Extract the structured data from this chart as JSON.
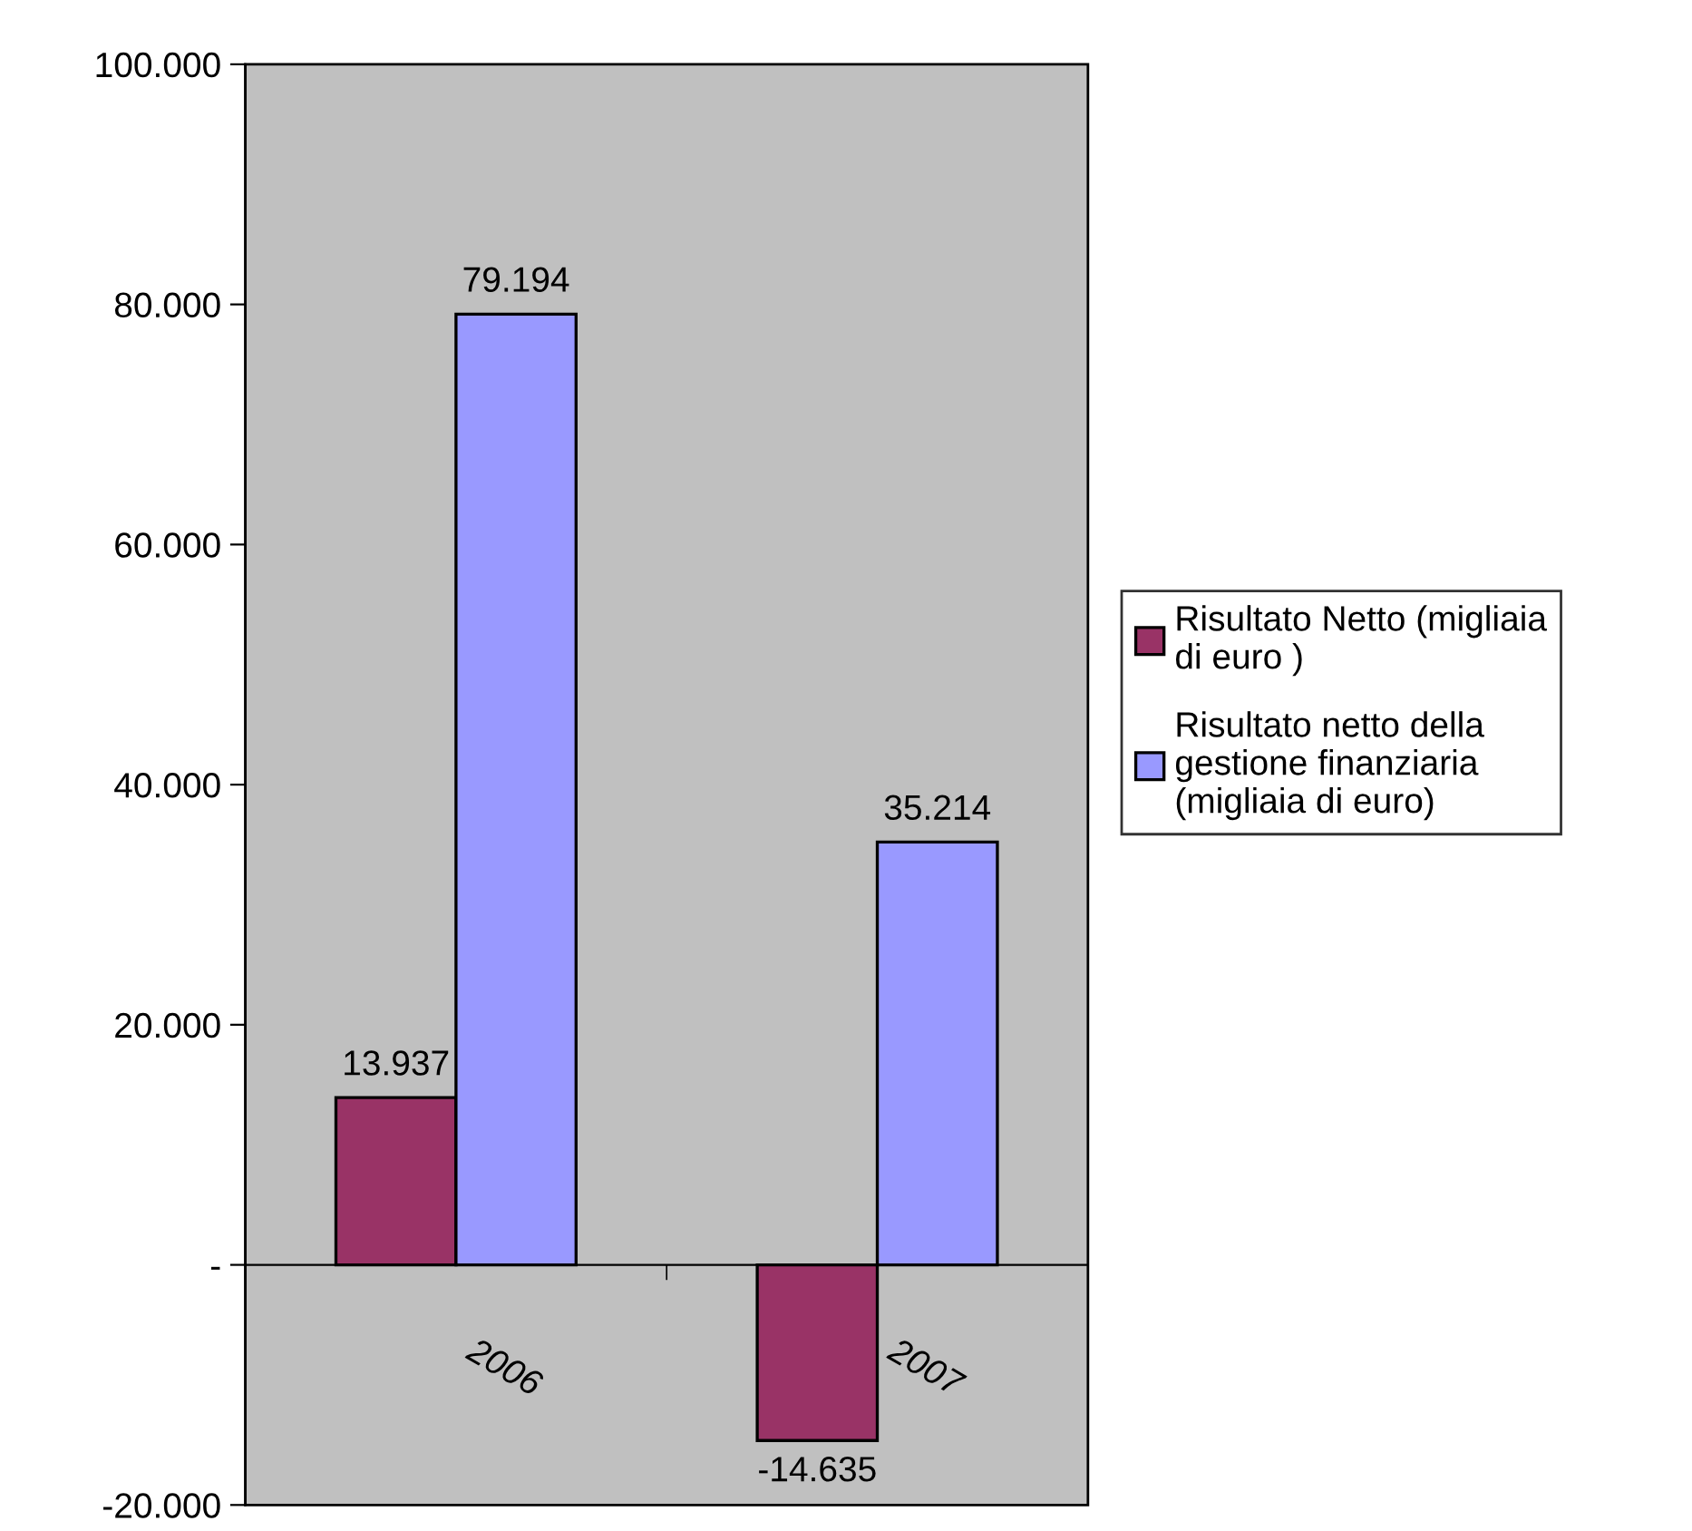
{
  "chart_data": {
    "type": "bar",
    "categories": [
      "2006",
      "2007"
    ],
    "series": [
      {
        "name": "Risultato Netto (migliaia\ndi euro )",
        "color": "#993366",
        "values": [
          13937,
          -14635
        ],
        "value_labels": [
          "13.937",
          "-14.635"
        ]
      },
      {
        "name": "Risultato netto della\ngestione finanziaria\n(migliaia di euro)",
        "color": "#9999ff",
        "values": [
          79194,
          35214
        ],
        "value_labels": [
          "79.194",
          "35.214"
        ]
      }
    ],
    "ylim": [
      -20000,
      100000
    ],
    "yticks": [
      {
        "value": -20000,
        "label": "-20.000"
      },
      {
        "value": 0,
        "label": "-"
      },
      {
        "value": 20000,
        "label": "20.000"
      },
      {
        "value": 40000,
        "label": "40.000"
      },
      {
        "value": 60000,
        "label": "60.000"
      },
      {
        "value": 80000,
        "label": "80.000"
      },
      {
        "value": 100000,
        "label": "100.000"
      }
    ],
    "grid": false,
    "legend": "right"
  }
}
